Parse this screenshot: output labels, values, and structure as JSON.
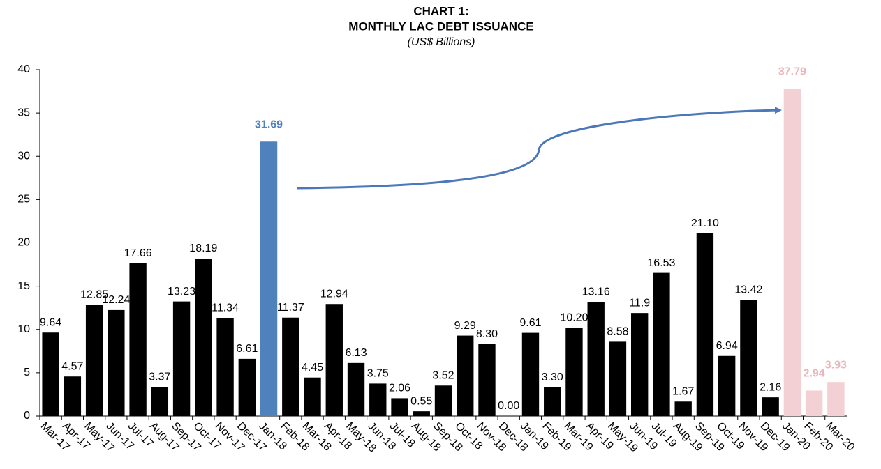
{
  "chart_data": {
    "type": "bar",
    "title": [
      "CHART 1:",
      "MONTHLY LAC DEBT ISSUANCE"
    ],
    "subtitle": "(US$ Billions)",
    "categories": [
      "Mar-17",
      "Apr-17",
      "May-17",
      "Jun-17",
      "Jul-17",
      "Aug-17",
      "Sep-17",
      "Oct-17",
      "Nov-17",
      "Dec-17",
      "Jan-18",
      "Feb-18",
      "Mar-18",
      "Apr-18",
      "May-18",
      "Jun-18",
      "Jul-18",
      "Aug-18",
      "Sep-18",
      "Oct-18",
      "Nov-18",
      "Dec-18",
      "Jan-19",
      "Feb-19",
      "Mar-19",
      "Apr-19",
      "May-19",
      "Jun-19",
      "Jul-19",
      "Aug-19",
      "Sep-19",
      "Oct-19",
      "Nov-19",
      "Dec-19",
      "Jan-20",
      "Feb-20",
      "Mar-20"
    ],
    "values": [
      9.64,
      4.57,
      12.85,
      12.24,
      17.66,
      3.37,
      13.23,
      18.19,
      11.34,
      6.61,
      31.69,
      11.37,
      4.45,
      12.94,
      6.13,
      3.75,
      2.06,
      0.55,
      3.52,
      9.29,
      8.3,
      0.0,
      9.61,
      3.3,
      10.2,
      13.16,
      8.58,
      11.9,
      16.53,
      1.67,
      21.1,
      6.94,
      13.42,
      2.16,
      37.79,
      2.94,
      3.93
    ],
    "value_labels": [
      "9.64",
      "4.57",
      "12.85",
      "12.24",
      "17.66",
      "3.37",
      "13.23",
      "18.19",
      "11.34",
      "6.61",
      "31.69",
      "11.37",
      "4.45",
      "12.94",
      "6.13",
      "3.75",
      "2.06",
      "0.55",
      "3.52",
      "9.29",
      "8.30",
      "0.00",
      "9.61",
      "3.30",
      "10.20",
      "13.16",
      "8.58",
      "11.9",
      "16.53",
      "1.67",
      "21.10",
      "6.94",
      "13.42",
      "2.16",
      "37.79",
      "2.94",
      "3.93"
    ],
    "colors": [
      "#000000",
      "#000000",
      "#000000",
      "#000000",
      "#000000",
      "#000000",
      "#000000",
      "#000000",
      "#000000",
      "#000000",
      "#4f81bd",
      "#000000",
      "#000000",
      "#000000",
      "#000000",
      "#000000",
      "#000000",
      "#000000",
      "#000000",
      "#000000",
      "#000000",
      "#000000",
      "#000000",
      "#000000",
      "#000000",
      "#000000",
      "#000000",
      "#000000",
      "#000000",
      "#000000",
      "#000000",
      "#000000",
      "#000000",
      "#000000",
      "#f2d0d3",
      "#f2d0d3",
      "#f2d0d3"
    ],
    "ylim": [
      0,
      40
    ],
    "yticks": [
      0,
      5,
      10,
      15,
      20,
      25,
      30,
      35,
      40
    ],
    "grid": false
  }
}
